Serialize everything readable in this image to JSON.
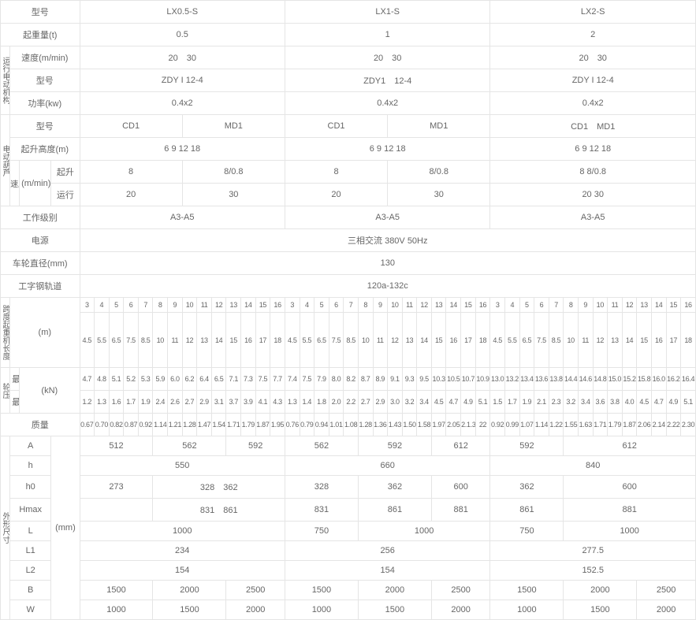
{
  "header": {
    "model_label": "型号",
    "models": [
      "LX0.5-S",
      "LX1-S",
      "LX2-S"
    ],
    "capacity_label": "起重量(t)",
    "capacities": [
      "0.5",
      "1",
      "2"
    ],
    "speed_label": "速度(m/min)",
    "speeds": [
      "20　30",
      "20　30",
      "20　30"
    ]
  },
  "side_labels": {
    "run_motor": "运行电动机构",
    "hoist": "电动葫芦",
    "span_len": "跨度起重机长度",
    "wheel_load": "轮压",
    "dims": "外形尺寸"
  },
  "motor": {
    "model_label": "型号",
    "models": [
      "ZDY I 12-4",
      "ZDY1　12-4",
      "ZDY I 12-4"
    ],
    "power_label": "功率(kw)",
    "powers": [
      "0.4x2",
      "0.4x2",
      "0.4x2"
    ]
  },
  "hoist": {
    "model_label": "型号",
    "model_row": [
      "CD1",
      "MD1",
      "CD1",
      "MD1",
      "CD1　MD1"
    ],
    "lift_label": "起升高度(m)",
    "lift_heights": [
      "6 9 12 18",
      "6 9 12 18",
      "6 9 12 18"
    ],
    "speed_block_label": "速度",
    "hoist_speed_label": "起升",
    "travel_speed_label": "运行",
    "unit_label": "(m/min)",
    "hoist_speeds": [
      "8",
      "8/0.8",
      "8",
      "8/0.8",
      "8 8/0.8"
    ],
    "travel_speeds": [
      "20",
      "30",
      "20",
      "30",
      "20 30"
    ]
  },
  "specs": {
    "work_class_label": "工作级别",
    "work_classes": [
      "A3-A5",
      "A3-A5",
      "A3-A5"
    ],
    "power_source_label": "电源",
    "power_source": "三相交流 380V 50Hz",
    "wheel_dia_label": "车轮直径(mm)",
    "wheel_dia": "130",
    "rail_label": "工字钢轨道",
    "rail": "120a-132c"
  },
  "span": {
    "unit": "(m)",
    "row1": [
      "3",
      "4",
      "5",
      "6",
      "7",
      "8",
      "9",
      "10",
      "11",
      "12",
      "13",
      "14",
      "15",
      "16",
      "3",
      "4",
      "5",
      "6",
      "7",
      "8",
      "9",
      "10",
      "11",
      "12",
      "13",
      "14",
      "15",
      "16",
      "3",
      "4",
      "5",
      "6",
      "7",
      "8",
      "9",
      "10",
      "11",
      "12",
      "13",
      "14",
      "15",
      "16"
    ],
    "row2": [
      "4.5",
      "5.5",
      "6.5",
      "7.5",
      "8.5",
      "10",
      "11",
      "12",
      "13",
      "14",
      "15",
      "16",
      "17",
      "18",
      "4.5",
      "5.5",
      "6.5",
      "7.5",
      "8.5",
      "10",
      "11",
      "12",
      "13",
      "14",
      "15",
      "16",
      "17",
      "18",
      "4.5",
      "5.5",
      "6.5",
      "7.5",
      "8.5",
      "10",
      "11",
      "12",
      "13",
      "14",
      "15",
      "16",
      "17",
      "18"
    ]
  },
  "wheel": {
    "max_label": "最大",
    "min_label": "最小",
    "unit": "(kN)",
    "max": [
      "4.7",
      "4.8",
      "5.1",
      "5.2",
      "5.3",
      "5.9",
      "6.0",
      "6.2",
      "6.4",
      "6.5",
      "7.1",
      "7.3",
      "7.5",
      "7.7",
      "7.4",
      "7.5",
      "7.9",
      "8.0",
      "8.2",
      "8.7",
      "8.9",
      "9.1",
      "9.3",
      "9.5",
      "10.3",
      "10.5",
      "10.7",
      "10.9",
      "13.0",
      "13.2",
      "13.4",
      "13.6",
      "13.8",
      "14.4",
      "14.6",
      "14.8",
      "15.0",
      "15.2",
      "15.8",
      "16.0",
      "16.2",
      "16.4"
    ],
    "min": [
      "1.2",
      "1.3",
      "1.6",
      "1.7",
      "1.9",
      "2.4",
      "2.6",
      "2.7",
      "2.9",
      "3.1",
      "3.7",
      "3.9",
      "4.1",
      "4.3",
      "1.3",
      "1.4",
      "1.8",
      "2.0",
      "2.2",
      "2.7",
      "2.9",
      "3.0",
      "3.2",
      "3.4",
      "4.5",
      "4.7",
      "4.9",
      "5.1",
      "1.5",
      "1.7",
      "1.9",
      "2.1",
      "2.3",
      "3.2",
      "3.4",
      "3.6",
      "3.8",
      "4.0",
      "4.5",
      "4.7",
      "4.9",
      "5.1"
    ]
  },
  "mass": {
    "label": "质量",
    "values": [
      "0.67",
      "0.70",
      "0.82",
      "0.87",
      "0.92",
      "1.14",
      "1.21",
      "1.28",
      "1.47",
      "1.54",
      "1.71",
      "1.79",
      "1.87",
      "1.95",
      "0.76",
      "0.79",
      "0.94",
      "1.01",
      "1.08",
      "1.28",
      "1.36",
      "1.43",
      "1.50",
      "1.58",
      "1.97",
      "2.05",
      "2.1.3",
      "22",
      "0.92",
      "0.99",
      "1.07",
      "1.14",
      "1.22",
      "1.55",
      "1.63",
      "1.71",
      "1.79",
      "1.87",
      "2.06",
      "2.14",
      "2.22",
      "2.30"
    ]
  },
  "dims": {
    "unit": "(mm)",
    "A_label": "A",
    "A": [
      "512",
      "562",
      "592",
      "562",
      "592",
      "612",
      "592",
      "612"
    ],
    "h_label": "h",
    "h": [
      "550",
      "660",
      "840"
    ],
    "h0_label": "h0",
    "h0": [
      "273",
      "328　362",
      "328",
      "362",
      "600",
      "362",
      "600"
    ],
    "Hmax_label": "Hmax",
    "Hmax": [
      "831　861",
      "831",
      "861",
      "881",
      "861",
      "881"
    ],
    "L_label": "L",
    "L": [
      "1000",
      "750",
      "1000",
      "750",
      "1000"
    ],
    "L1_label": "L1",
    "L1": [
      "234",
      "256",
      "277.5"
    ],
    "L2_label": "L2",
    "L2": [
      "154",
      "154",
      "152.5"
    ],
    "B_label": "B",
    "B": [
      "1500",
      "2000",
      "2500",
      "1500",
      "2000",
      "2500",
      "1500",
      "2000",
      "2500"
    ],
    "W_label": "W",
    "W": [
      "1000",
      "1500",
      "2000",
      "1000",
      "1500",
      "2000",
      "1000",
      "1500",
      "2000"
    ]
  }
}
